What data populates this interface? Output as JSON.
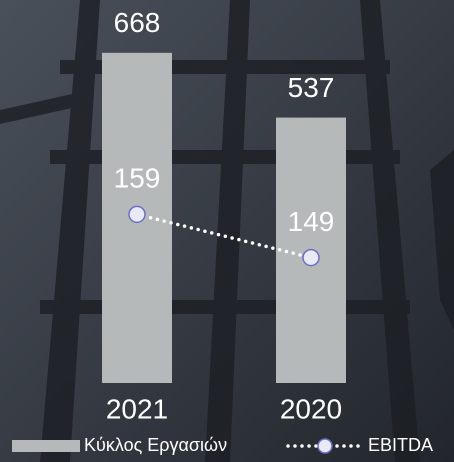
{
  "chart_data": {
    "type": "bar-line",
    "categories": [
      "2021",
      "2020"
    ],
    "series": [
      {
        "name": "Κύκλος Εργασιών",
        "type": "bar",
        "color": "#b5b9ba",
        "values": [
          668,
          537
        ]
      },
      {
        "name": "EBITDA",
        "type": "line",
        "axis": "y2",
        "color": "#ffffff",
        "values": [
          159,
          149
        ]
      }
    ],
    "ylim": [
      0,
      700
    ],
    "y2lim": [
      120,
      200
    ]
  }
}
